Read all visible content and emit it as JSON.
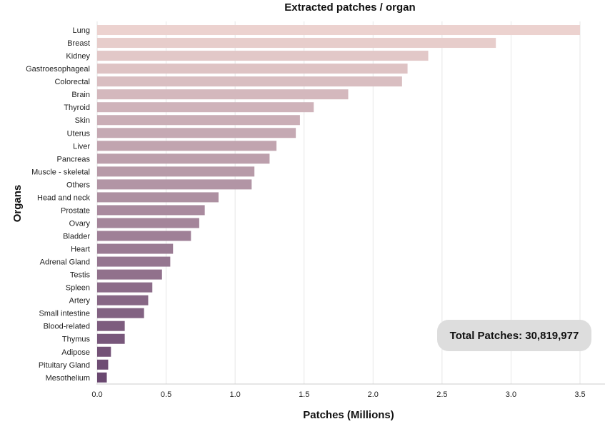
{
  "chart_data": {
    "type": "bar",
    "orientation": "horizontal",
    "title": "Extracted patches / organ",
    "xlabel": "Patches (Millions)",
    "ylabel": "Organs",
    "xlim": [
      0,
      3.5
    ],
    "xticks": [
      "0.0",
      "0.5",
      "1.0",
      "1.5",
      "2.0",
      "2.5",
      "3.0",
      "3.5"
    ],
    "grid": true,
    "categories": [
      "Lung",
      "Breast",
      "Kidney",
      "Gastroesophageal",
      "Colorectal",
      "Brain",
      "Thyroid",
      "Skin",
      "Uterus",
      "Liver",
      "Pancreas",
      "Muscle - skeletal",
      "Others",
      "Head and neck",
      "Prostate",
      "Ovary",
      "Bladder",
      "Heart",
      "Adrenal Gland",
      "Testis",
      "Spleen",
      "Artery",
      "Small intestine",
      "Blood-related",
      "Thymus",
      "Adipose",
      "Pituitary Gland",
      "Mesothelium"
    ],
    "values": [
      3.5,
      2.89,
      2.4,
      2.25,
      2.21,
      1.82,
      1.57,
      1.47,
      1.44,
      1.3,
      1.25,
      1.14,
      1.12,
      0.88,
      0.78,
      0.74,
      0.68,
      0.55,
      0.53,
      0.47,
      0.4,
      0.37,
      0.34,
      0.2,
      0.2,
      0.1,
      0.08,
      0.07
    ],
    "color_start": "#ecd2cf",
    "color_end": "#6a4870"
  },
  "annotation": {
    "total_label": "Total Patches: 30,819,977"
  }
}
